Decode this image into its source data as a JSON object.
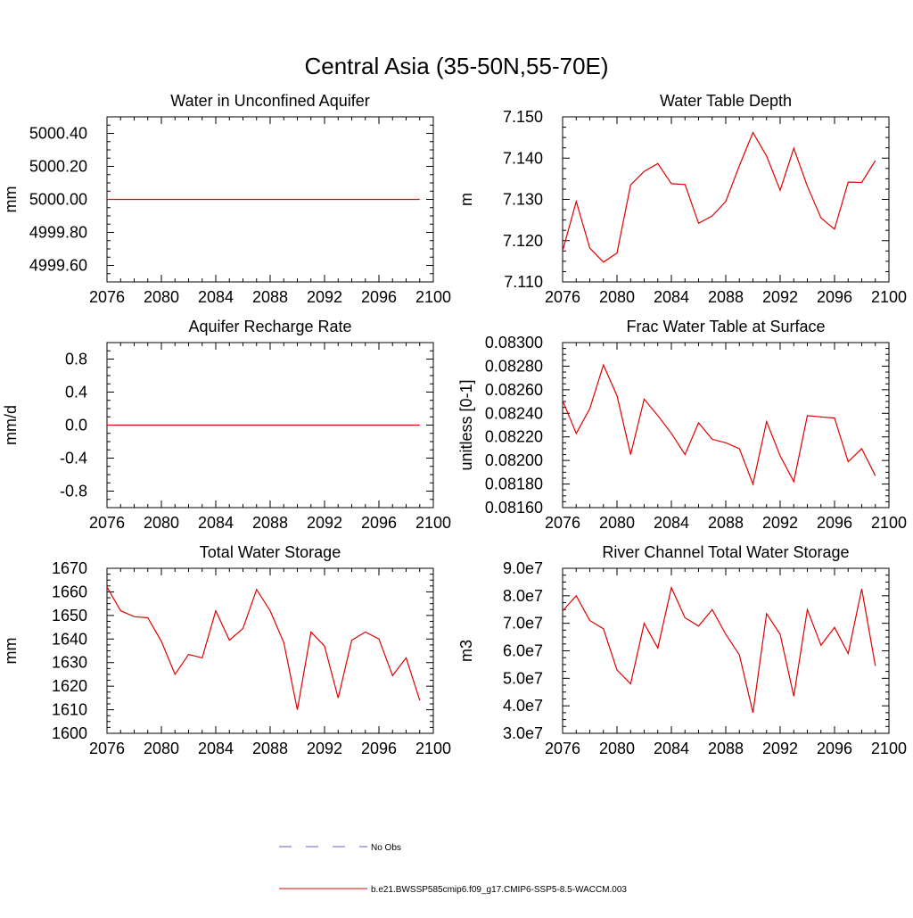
{
  "page_title": "Central Asia (35-50N,55-70E)",
  "legend": {
    "placement": "bottom-center",
    "items": [
      {
        "label": "No Obs",
        "color": "#6060c0",
        "style": "dashed"
      },
      {
        "label": "b.e21.BWSSP585cmip6.f09_g17.CMIP6-SSP5-8.5-WACCM.003",
        "color": "#e00000",
        "style": "solid"
      }
    ]
  },
  "chart_data": [
    {
      "type": "line",
      "title": "Water in Unconfined Aquifer",
      "xlabel": "",
      "ylabel": "mm",
      "xlim": [
        2076,
        2100
      ],
      "ylim": [
        4999.5,
        5000.5
      ],
      "xticks": [
        2076,
        2080,
        2084,
        2088,
        2092,
        2096,
        2100
      ],
      "xtick_labels": [
        "2076",
        "2080",
        "2084",
        "2088",
        "2092",
        "2096",
        "2100"
      ],
      "yticks": [
        4999.6,
        4999.8,
        5000.0,
        5000.2,
        5000.4
      ],
      "ytick_labels": [
        "4999.60",
        "4999.80",
        "5000.00",
        "5000.20",
        "5000.40"
      ],
      "series": [
        {
          "color": "#e00000",
          "x": [
            2076,
            2077,
            2078,
            2079,
            2080,
            2081,
            2082,
            2083,
            2084,
            2085,
            2086,
            2087,
            2088,
            2089,
            2090,
            2091,
            2092,
            2093,
            2094,
            2095,
            2096,
            2097,
            2098,
            2099
          ],
          "y": [
            5000,
            5000,
            5000,
            5000,
            5000,
            5000,
            5000,
            5000,
            5000,
            5000,
            5000,
            5000,
            5000,
            5000,
            5000,
            5000,
            5000,
            5000,
            5000,
            5000,
            5000,
            5000,
            5000,
            5000
          ]
        }
      ]
    },
    {
      "type": "line",
      "title": "Water Table Depth",
      "xlabel": "",
      "ylabel": "m",
      "xlim": [
        2076,
        2100
      ],
      "ylim": [
        7.11,
        7.15
      ],
      "xticks": [
        2076,
        2080,
        2084,
        2088,
        2092,
        2096,
        2100
      ],
      "xtick_labels": [
        "2076",
        "2080",
        "2084",
        "2088",
        "2092",
        "2096",
        "2100"
      ],
      "yticks": [
        7.11,
        7.12,
        7.13,
        7.14,
        7.15
      ],
      "ytick_labels": [
        "7.110",
        "7.120",
        "7.130",
        "7.140",
        "7.150"
      ],
      "series": [
        {
          "color": "#e00000",
          "x": [
            2076,
            2077,
            2078,
            2079,
            2080,
            2081,
            2082,
            2083,
            2084,
            2085,
            2086,
            2087,
            2088,
            2089,
            2090,
            2091,
            2092,
            2093,
            2094,
            2095,
            2096,
            2097,
            2098,
            2099
          ],
          "y": [
            7.1175,
            7.1295,
            7.1182,
            7.1148,
            7.117,
            7.1335,
            7.1368,
            7.1387,
            7.1338,
            7.1336,
            7.1242,
            7.126,
            7.1295,
            7.1382,
            7.1462,
            7.1405,
            7.1322,
            7.1424,
            7.1332,
            7.1255,
            7.1228,
            7.1342,
            7.1341,
            7.1394
          ]
        }
      ]
    },
    {
      "type": "line",
      "title": "Aquifer Recharge Rate",
      "xlabel": "",
      "ylabel": "mm/d",
      "xlim": [
        2076,
        2100
      ],
      "ylim": [
        -1.0,
        1.0
      ],
      "xticks": [
        2076,
        2080,
        2084,
        2088,
        2092,
        2096,
        2100
      ],
      "xtick_labels": [
        "2076",
        "2080",
        "2084",
        "2088",
        "2092",
        "2096",
        "2100"
      ],
      "yticks": [
        -0.8,
        -0.4,
        0.0,
        0.4,
        0.8
      ],
      "ytick_labels": [
        "-0.8",
        "-0.4",
        "0.0",
        "0.4",
        "0.8"
      ],
      "series": [
        {
          "color": "#e00000",
          "x": [
            2076,
            2077,
            2078,
            2079,
            2080,
            2081,
            2082,
            2083,
            2084,
            2085,
            2086,
            2087,
            2088,
            2089,
            2090,
            2091,
            2092,
            2093,
            2094,
            2095,
            2096,
            2097,
            2098,
            2099
          ],
          "y": [
            0,
            0,
            0,
            0,
            0,
            0,
            0,
            0,
            0,
            0,
            0,
            0,
            0,
            0,
            0,
            0,
            0,
            0,
            0,
            0,
            0,
            0,
            0,
            0
          ]
        }
      ]
    },
    {
      "type": "line",
      "title": "Frac Water Table at Surface",
      "xlabel": "",
      "ylabel": "unitless [0-1]",
      "xlim": [
        2076,
        2100
      ],
      "ylim": [
        0.0816,
        0.083
      ],
      "xticks": [
        2076,
        2080,
        2084,
        2088,
        2092,
        2096,
        2100
      ],
      "xtick_labels": [
        "2076",
        "2080",
        "2084",
        "2088",
        "2092",
        "2096",
        "2100"
      ],
      "yticks": [
        0.0816,
        0.0818,
        0.082,
        0.0822,
        0.0824,
        0.0826,
        0.0828,
        0.083
      ],
      "ytick_labels": [
        "0.08160",
        "0.08180",
        "0.08200",
        "0.08220",
        "0.08240",
        "0.08260",
        "0.08280",
        "0.08300"
      ],
      "series": [
        {
          "color": "#e00000",
          "x": [
            2076,
            2077,
            2078,
            2079,
            2080,
            2081,
            2082,
            2083,
            2084,
            2085,
            2086,
            2087,
            2088,
            2089,
            2090,
            2091,
            2092,
            2093,
            2094,
            2095,
            2096,
            2097,
            2098,
            2099
          ],
          "y": [
            0.08251,
            0.08223,
            0.08244,
            0.08281,
            0.08255,
            0.08205,
            0.08252,
            0.08238,
            0.08223,
            0.08205,
            0.08232,
            0.08218,
            0.08215,
            0.0821,
            0.0818,
            0.08233,
            0.08204,
            0.08182,
            0.08238,
            0.08237,
            0.08236,
            0.08199,
            0.0821,
            0.08187
          ]
        }
      ]
    },
    {
      "type": "line",
      "title": "Total Water Storage",
      "xlabel": "",
      "ylabel": "mm",
      "xlim": [
        2076,
        2100
      ],
      "ylim": [
        1600,
        1670
      ],
      "xticks": [
        2076,
        2080,
        2084,
        2088,
        2092,
        2096,
        2100
      ],
      "xtick_labels": [
        "2076",
        "2080",
        "2084",
        "2088",
        "2092",
        "2096",
        "2100"
      ],
      "yticks": [
        1600,
        1610,
        1620,
        1630,
        1640,
        1650,
        1660,
        1670
      ],
      "ytick_labels": [
        "1600",
        "1610",
        "1620",
        "1630",
        "1640",
        "1650",
        "1660",
        "1670"
      ],
      "series": [
        {
          "color": "#e00000",
          "x": [
            2076,
            2077,
            2078,
            2079,
            2080,
            2081,
            2082,
            2083,
            2084,
            2085,
            2086,
            2087,
            2088,
            2089,
            2090,
            2091,
            2092,
            2093,
            2094,
            2095,
            2096,
            2097,
            2098,
            2099
          ],
          "y": [
            1662,
            1652,
            1649.5,
            1649,
            1639,
            1625,
            1633.5,
            1632,
            1652,
            1639.5,
            1644.5,
            1661,
            1652,
            1638.5,
            1610,
            1643,
            1637,
            1615,
            1639.5,
            1643,
            1640,
            1624.5,
            1632,
            1614
          ]
        }
      ]
    },
    {
      "type": "line",
      "title": "River Channel Total Water Storage",
      "xlabel": "",
      "ylabel": "m3",
      "xlim": [
        2076,
        2100
      ],
      "ylim": [
        30000000,
        90000000
      ],
      "xticks": [
        2076,
        2080,
        2084,
        2088,
        2092,
        2096,
        2100
      ],
      "xtick_labels": [
        "2076",
        "2080",
        "2084",
        "2088",
        "2092",
        "2096",
        "2100"
      ],
      "yticks": [
        30000000,
        40000000,
        50000000,
        60000000,
        70000000,
        80000000,
        90000000
      ],
      "ytick_labels": [
        "3.0e7",
        "4.0e7",
        "5.0e7",
        "6.0e7",
        "7.0e7",
        "8.0e7",
        "9.0e7"
      ],
      "series": [
        {
          "color": "#e00000",
          "x": [
            2076,
            2077,
            2078,
            2079,
            2080,
            2081,
            2082,
            2083,
            2084,
            2085,
            2086,
            2087,
            2088,
            2089,
            2090,
            2091,
            2092,
            2093,
            2094,
            2095,
            2096,
            2097,
            2098,
            2099
          ],
          "y": [
            74500000,
            80000000,
            71000000,
            68000000,
            53000000,
            48000000,
            70000000,
            61000000,
            83000000,
            72000000,
            69000000,
            75000000,
            66000000,
            58500000,
            37500000,
            73500000,
            66000000,
            43500000,
            75000000,
            62000000,
            68500000,
            59000000,
            82500000,
            54500000
          ]
        }
      ]
    }
  ]
}
